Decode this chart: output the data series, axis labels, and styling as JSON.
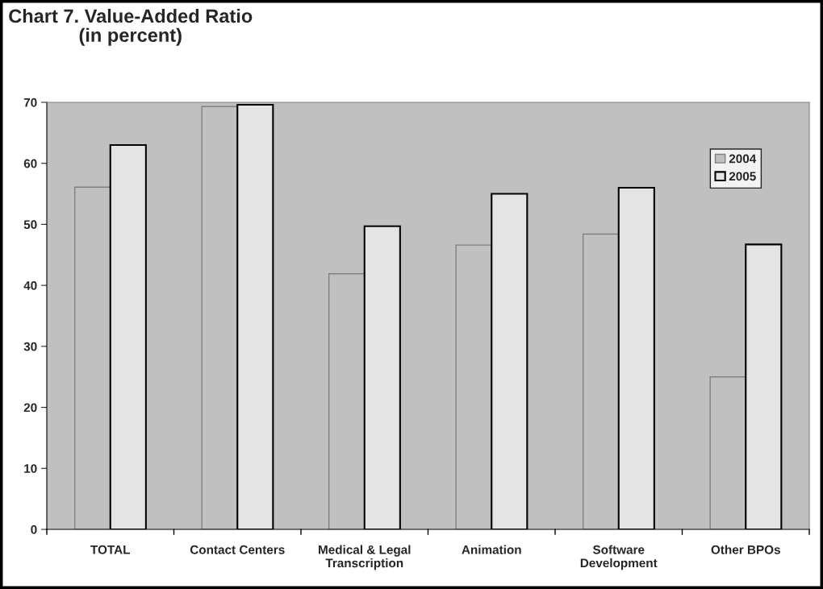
{
  "chart_data": {
    "type": "bar",
    "title": "Chart 7. Value-Added Ratio\n(in percent)",
    "categories": [
      "TOTAL",
      "Contact Centers",
      "Medical & Legal\nTranscription",
      "Animation",
      "Software\nDevelopment",
      "Other BPOs"
    ],
    "series": [
      {
        "name": "2004",
        "color": "#c0c0c0",
        "values": [
          56.1,
          69.3,
          41.9,
          46.6,
          48.4,
          25.0
        ]
      },
      {
        "name": "2005",
        "color": "#e4e4e4",
        "values": [
          63.0,
          69.6,
          49.7,
          55.0,
          56.0,
          46.7
        ]
      }
    ],
    "ylim": [
      0,
      70
    ],
    "yticks": [
      0,
      10,
      20,
      30,
      40,
      50,
      60,
      70
    ],
    "grid": false,
    "legend": "top right"
  }
}
